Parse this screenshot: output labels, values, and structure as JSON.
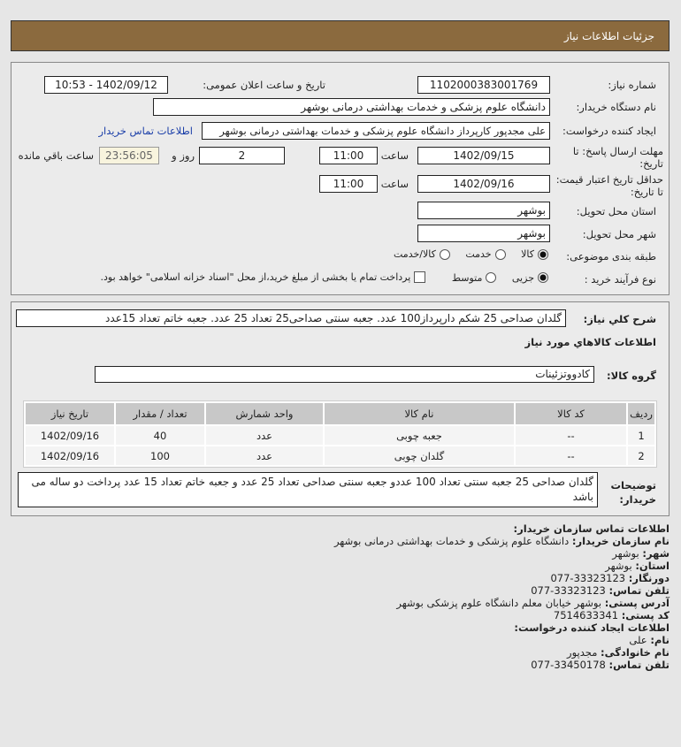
{
  "header": {
    "title": "جزئیات اطلاعات نیاز"
  },
  "form": {
    "need_number_label": "شماره نیاز:",
    "need_number": "1102000383001769",
    "announce_label": "تاریخ و ساعت اعلان عمومی:",
    "announce_value": "1402/09/12 - 10:53",
    "buyer_label": "نام دستگاه خریدار:",
    "buyer_value": "دانشگاه علوم پزشکی و خدمات بهداشتی درمانی بوشهر",
    "creator_label": "ایجاد کننده درخواست:",
    "creator_value": "علی مجدپور کارپرداز دانشگاه علوم پزشکی و خدمات بهداشتی درمانی بوشهر",
    "contact_link": "اطلاعات تماس خریدار",
    "deadline_label": "مهلت ارسال پاسخ: تا تاریخ:",
    "deadline_date": "1402/09/15",
    "time_label": "ساعت",
    "deadline_time": "11:00",
    "days": "2",
    "days_label": "روز و",
    "remaining": "23:56:05",
    "remaining_label": "ساعت باقي مانده",
    "validity_label": "حداقل تاریخ اعتبار قیمت: تا تاریخ:",
    "validity_date": "1402/09/16",
    "validity_time": "11:00",
    "province_label": "استان محل تحویل:",
    "province": "بوشهر",
    "city_label": "شهر محل تحویل:",
    "city": "بوشهر",
    "category_label": "طبقه بندی موضوعی:",
    "category_options": [
      "کالا",
      "خدمت",
      "کالا/خدمت"
    ],
    "category_selected": "کالا",
    "process_label": "نوع فرآیند خرید :",
    "process_options": [
      "جزیی",
      "متوسط"
    ],
    "process_selected": "جزیی",
    "payment_note": "پرداخت تمام یا بخشی از مبلغ خرید،از محل \"اسناد خزانه اسلامی\" خواهد بود."
  },
  "details": {
    "desc_label": "شرح کلي نياز:",
    "desc": "گلدان صداحی 25 شکم دارپرداز100 عدد. جعبه سنتی صداحی25 تعداد 25 عدد. جعبه خاتم تعداد 15عدد",
    "items_title": "اطلاعات کالاهاي مورد نياز",
    "group_label": "گروه کالا:",
    "group": "کادووتزئینات",
    "columns": [
      "ردیف",
      "کد کالا",
      "نام کالا",
      "واحد شمارش",
      "تعداد / مقدار",
      "تاریخ نیاز"
    ],
    "rows": [
      [
        "1",
        "--",
        "جعبه چوبی",
        "عدد",
        "40",
        "1402/09/16"
      ],
      [
        "2",
        "--",
        "گلدان چوبی",
        "عدد",
        "100",
        "1402/09/16"
      ]
    ],
    "notes_label": "توضیحات خریدار:",
    "notes": "گلدان صداحی 25 جعبه سنتی تعداد 100 عددو جعبه سنتی صداحی تعداد 25 عدد و جعبه خاتم تعداد 15 عدد پرداخت دو ساله می باشد"
  },
  "contact": {
    "title": "اطلاعات تماس سازمان خریدار:",
    "org_label": "نام سازمان خریدار:",
    "org": "دانشگاه علوم پزشکی و خدمات بهداشتی درمانی بوشهر",
    "city_label": "شهر:",
    "city": "بوشهر",
    "province_label": "استان:",
    "province": "بوشهر",
    "fax_label": "دورنگار:",
    "fax": "33323123-077",
    "phone_label": "تلفن تماس:",
    "phone": "33323123-077",
    "address_label": "آدرس پستی:",
    "address": "بوشهر خیابان معلم دانشگاه علوم پزشکی بوشهر",
    "postal_label": "کد پستی:",
    "postal": "7514633341",
    "creator_title": "اطلاعات ایجاد کننده درخواست:",
    "name_label": "نام:",
    "name": "علی",
    "family_label": "نام خانوادگی:",
    "family": "مجدپور",
    "creator_phone_label": "تلفن تماس:",
    "creator_phone": "33450178-077"
  }
}
